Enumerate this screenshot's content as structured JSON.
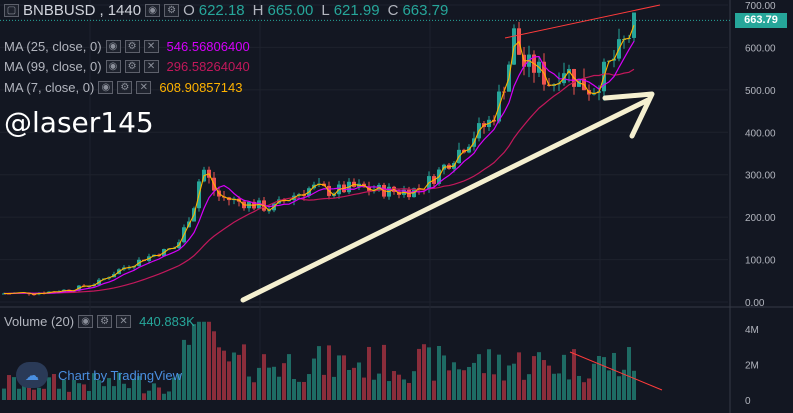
{
  "header": {
    "symbol": "BNBBUSD",
    "interval": "1440",
    "ohlc": {
      "open_label": "O",
      "open": "622.18",
      "high_label": "H",
      "high": "665.00",
      "low_label": "L",
      "low": "621.99",
      "close_label": "C",
      "close": "663.79"
    }
  },
  "indicators": [
    {
      "label": "MA (25, close, 0)",
      "value": "546.56806400",
      "color": "#d500f9"
    },
    {
      "label": "MA (99, close, 0)",
      "value": "296.58264040",
      "color": "#c2185b"
    },
    {
      "label": "MA (7, close, 0)",
      "value": "608.90857143",
      "color": "#ffb300"
    }
  ],
  "watermark": "@laser145",
  "price_axis": {
    "ticks": [
      "700.00",
      "600.00",
      "500.00",
      "400.00",
      "300.00",
      "200.00",
      "100.00",
      "0.00"
    ],
    "current_price": "663.79"
  },
  "volume": {
    "label": "Volume (20)",
    "value": "440.883K",
    "value_color": "#26a69a",
    "ticks": [
      "4M",
      "2M",
      "0"
    ]
  },
  "branding": {
    "text": "Chart by TradingView",
    "icon": "tradingview-cloud-icon"
  },
  "colors": {
    "background": "#131722",
    "up": "#26a69a",
    "down": "#ef5350",
    "ma25": "#d500f9",
    "ma99": "#c2185b",
    "ma7": "#ffb300",
    "trend_arrow": "#f5f0d0",
    "trend_line": "#ff3b3b"
  }
}
